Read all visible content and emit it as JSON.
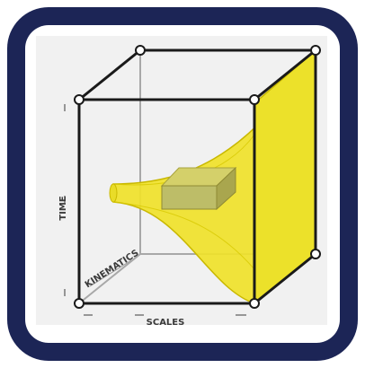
{
  "axes": {
    "time": "TIME",
    "kinematics": "KINEMATICS",
    "scales": "SCALES"
  },
  "colors": {
    "frame": "#1c2556",
    "funnel_fill": "#f0e22a",
    "funnel_edge": "#c9b800",
    "block_fill": "#bdbd68",
    "cube_edge": "#1a1a1a",
    "hidden_edge": "#a8a8a8"
  },
  "icon": "space-time-scale-cube-icon"
}
